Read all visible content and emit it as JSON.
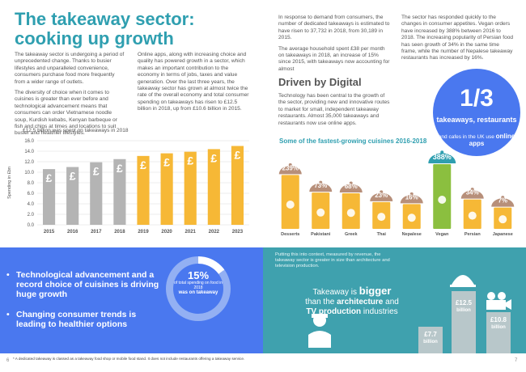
{
  "title": "The takeaway sector: cooking up growth",
  "col1": [
    "The takeaway sector is undergoing a period of unprecedented change. Thanks to busier lifestyles and unparalleled convenience, consumers purchase food more frequently from a wider range of outlets.",
    "The diversity of choice when it comes to cuisines is greater than ever before and technological advancement means that consumers can order Vietnamese noodle soup, Kurdish kebabs, Kenyan barbeque or fish and chips at times and locations to suit busier and healthier lifestyles."
  ],
  "col2": [
    "Online apps, along with increasing choice and quality has powered growth in a sector, which makes an important contribution to the economy in terms of jobs, taxes and value generation. Over the last three years, the takeaway sector has grown at almost twice the rate of the overall economy and total consumer spending on takeaways has risen to £12.5 billion in 2018, up from £10.6 billion in 2015."
  ],
  "col3": [
    "In response to demand from consumers, the number of dedicated takeaways is estimated to have risen to 37,732 in 2018, from 30,189 in 2015.",
    "The average household spent £38 per month on takeaways in 2018, an increase of 15% since 2015, with takeaways now accounting for almost"
  ],
  "col4": [
    "The sector has responded quickly to the changes in consumer appetites. Vegan orders have increased by 388% between 2016 to 2018. The increasing popularity of Persian food has seen growth of 34% in the same time frame, while the number of Nepalese takeaway restaurants has increased by 16%."
  ],
  "digital": {
    "title": "Driven by Digital",
    "text": "Technology has been central to the growth of the sector, providing new and innovative routes to market for small, independent takeaway restaurants. Almost 35,000 takeaways and restaurants now use online apps."
  },
  "stat": {
    "big": "1/3",
    "mid": "takeaways, restaurants",
    "small": "and cafes in the UK use",
    "small_bold": "online apps"
  },
  "chart_data": [
    {
      "type": "bar",
      "title": "£12.5 billion was spent on takeaways in 2018",
      "xlabel": "",
      "ylabel": "Spending in £bn",
      "categories": [
        "2015",
        "2016",
        "2017",
        "2018",
        "2019",
        "2020",
        "2021",
        "2022",
        "2023"
      ],
      "values": [
        10.6,
        11.0,
        11.9,
        12.5,
        13.1,
        13.6,
        13.9,
        14.4,
        15.0
      ],
      "ylim": [
        0,
        16
      ],
      "yticks": [
        "0.0",
        "2.0",
        "4.0",
        "6.0",
        "8.0",
        "10.0",
        "12.0",
        "14.0",
        "16.0"
      ],
      "bar_symbol": "£",
      "colors": {
        "actual": "#b4b4b4",
        "forecast": "#f6b836"
      },
      "grid": true
    },
    {
      "type": "bar",
      "title": "Some of the fastest-growing cuisines 2016-2018",
      "categories": [
        "Desserts",
        "Pakistani",
        "Greek",
        "Thai",
        "Nepalese",
        "Vegan",
        "Persian",
        "Japanese"
      ],
      "values": [
        239,
        73,
        68,
        23,
        16,
        388,
        34,
        7
      ],
      "value_labels": [
        "239%",
        "73%",
        "68%",
        "23%",
        "16%",
        "388%",
        "34%",
        "7%"
      ],
      "colors": {
        "cloche": "#b78f7a",
        "label_bg": "#b78f7a",
        "hero": "#2f9fb0",
        "column": "#f6b836",
        "vegan_column": "#8bbf3f"
      }
    }
  ],
  "bullets": [
    "Technological advancement and a record choice of cuisines is driving huge growth",
    "Changing consumer trends is leading to healthier options"
  ],
  "donut": {
    "pct": "15%",
    "sub": "of total spending on food in 2018",
    "bold": "was on takeaway",
    "fraction": 0.15
  },
  "comparison": {
    "intro": "Putting this into context, measured by revenue, the takeaway sector is greater in size than architecture and television production.",
    "headline_pre": "Takeaway is",
    "headline_big": "bigger",
    "headline_mid": "than the",
    "headline_arch": "architecture",
    "headline_and": "and",
    "headline_tv": "TV production",
    "headline_end": "industries",
    "takeaway_value": "£12.5",
    "arch_value": "£7.7",
    "tv_value": "£10.8",
    "unit": "billion"
  },
  "footnote": "* A dedicated takeaway is classed as a takeaway food shop or mobile food stand. It does not include restaurants offering a takeaway service.",
  "pages": {
    "left": "6",
    "right": "7"
  }
}
